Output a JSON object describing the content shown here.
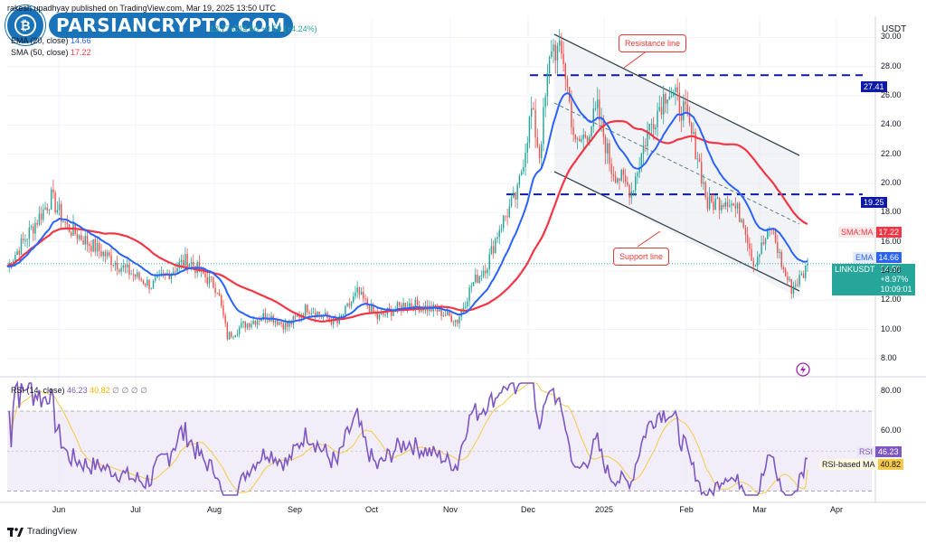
{
  "brand": {
    "logo_text": "PARSIANCRYPTO.COM"
  },
  "header": {
    "published": "rakesh upadhyay published on TradingView.com, Mar 19, 2025 13:50 UTC",
    "ohlc_visible": "13.77  C14.50  +0.59 (+4.24%)",
    "ema_label": "EMA (20, close)",
    "ema_value": "14.66",
    "sma_label": "SMA (50, close)",
    "sma_value": "17.22"
  },
  "currency": "USDT",
  "annotations": {
    "resistance": "Resistance line",
    "support": "Support line"
  },
  "price_tags": {
    "level_high": "27.41",
    "level_low": "19.25",
    "sma_label": "SMA:MA",
    "sma_value": "17.22",
    "ema_label": "EMA",
    "ema_value": "14.66",
    "symbol": "LINKUSDT",
    "price": "14.50",
    "change": "+8.97%",
    "countdown": "10:09:01",
    "rsi_label": "RSI",
    "rsi_value": "46.23",
    "rsi_ma_label": "RSI-based MA",
    "rsi_ma_value": "40.82"
  },
  "rsi_header": {
    "label": "RSI (14, close)",
    "value": "46.23",
    "ma_value": "40.82",
    "extras": "∅  ∅  ∅  ∅"
  },
  "footer": {
    "brand": "TradingView"
  },
  "colors": {
    "up": "#26a69a",
    "down": "#ef5350",
    "ema": "#2962ff",
    "sma": "#f23645",
    "rsi": "#7e57c2",
    "rsi_ma": "#f7c948",
    "level": "#0d1aa8",
    "channel": "#37474f"
  },
  "chart_data": {
    "type": "candlestick",
    "symbol": "LINKUSDT",
    "price_axis": {
      "ticks": [
        8.0,
        10.0,
        12.0,
        14.0,
        16.0,
        18.0,
        20.0,
        22.0,
        24.0,
        26.0,
        28.0,
        30.0
      ],
      "range": [
        7.0,
        31.2
      ]
    },
    "x_axis": {
      "labels": [
        "Jun",
        "Jul",
        "Aug",
        "Sep",
        "Oct",
        "Nov",
        "Dec",
        "2025",
        "Feb",
        "Mar",
        "Apr"
      ]
    },
    "anchors": [
      {
        "d": 0,
        "p": 14.3
      },
      {
        "d": 15,
        "p": 17.5
      },
      {
        "d": 22,
        "p": 19.0
      },
      {
        "d": 30,
        "p": 17.0
      },
      {
        "d": 45,
        "p": 15.5
      },
      {
        "d": 60,
        "p": 14.0
      },
      {
        "d": 72,
        "p": 13.0
      },
      {
        "d": 90,
        "p": 14.8
      },
      {
        "d": 105,
        "p": 12.8
      },
      {
        "d": 110,
        "p": 9.5
      },
      {
        "d": 118,
        "p": 10.3
      },
      {
        "d": 130,
        "p": 11.0
      },
      {
        "d": 140,
        "p": 10.2
      },
      {
        "d": 150,
        "p": 11.5
      },
      {
        "d": 165,
        "p": 10.4
      },
      {
        "d": 175,
        "p": 12.5
      },
      {
        "d": 185,
        "p": 10.8
      },
      {
        "d": 200,
        "p": 11.8
      },
      {
        "d": 215,
        "p": 11.3
      },
      {
        "d": 225,
        "p": 10.6
      },
      {
        "d": 232,
        "p": 13.0
      },
      {
        "d": 240,
        "p": 14.5
      },
      {
        "d": 246,
        "p": 17.0
      },
      {
        "d": 255,
        "p": 19.3
      },
      {
        "d": 262,
        "p": 25.0
      },
      {
        "d": 266,
        "p": 22.0
      },
      {
        "d": 272,
        "p": 29.5
      },
      {
        "d": 278,
        "p": 28.5
      },
      {
        "d": 284,
        "p": 22.5
      },
      {
        "d": 290,
        "p": 23.5
      },
      {
        "d": 295,
        "p": 25.0
      },
      {
        "d": 302,
        "p": 21.0
      },
      {
        "d": 312,
        "p": 19.5
      },
      {
        "d": 320,
        "p": 23.5
      },
      {
        "d": 330,
        "p": 26.5
      },
      {
        "d": 338,
        "p": 25.0
      },
      {
        "d": 345,
        "p": 22.0
      },
      {
        "d": 350,
        "p": 18.5
      },
      {
        "d": 360,
        "p": 19.0
      },
      {
        "d": 368,
        "p": 17.5
      },
      {
        "d": 373,
        "p": 14.5
      },
      {
        "d": 382,
        "p": 17.0
      },
      {
        "d": 388,
        "p": 14.0
      },
      {
        "d": 392,
        "p": 12.8
      },
      {
        "d": 398,
        "p": 13.8
      },
      {
        "d": 400,
        "p": 14.5
      }
    ],
    "ema_last": 14.66,
    "sma_last": 17.22,
    "last_price": 14.5,
    "horizontal_levels": [
      27.41,
      19.25
    ],
    "rsi": {
      "ticks": [
        80.0,
        60.0
      ],
      "range": [
        28,
        84
      ],
      "bands": [
        70,
        30
      ],
      "midline": 50,
      "value": 46.23,
      "ma": 40.82
    }
  }
}
